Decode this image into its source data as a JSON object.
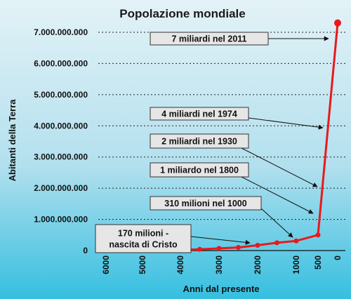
{
  "chart_data": {
    "type": "line",
    "title": "Popolazione mondiale",
    "xlabel": "Anni dal presente",
    "ylabel": "Abitanti della Terra",
    "xlim": [
      6000,
      0
    ],
    "ylim": [
      0,
      7000000000
    ],
    "x_ticks": [
      "6000",
      "5000",
      "4000",
      "3000",
      "2000",
      "1000",
      "500",
      "0"
    ],
    "y_ticks": [
      "0",
      "1.000.000.000",
      "2.000.000.000",
      "3.000.000.000",
      "4.000.000.000",
      "5.000.000.000",
      "6.000.000.000",
      "7.000.000.000"
    ],
    "grid": "horizontal dotted",
    "line_color": "#e8191c",
    "x": [
      6000,
      5500,
      5000,
      4500,
      4000,
      3500,
      3000,
      2500,
      2000,
      1500,
      1000,
      500,
      0
    ],
    "values": [
      5000000,
      7000000,
      10000000,
      14000000,
      20000000,
      40000000,
      70000000,
      100000000,
      170000000,
      250000000,
      310000000,
      500000000,
      7300000000
    ],
    "annotations": [
      {
        "text_lines": [
          "7 miliardi nel 2011"
        ],
        "target_x": 0,
        "target_y": 7000000000
      },
      {
        "text_lines": [
          "4 miliardi nel 1974"
        ],
        "target_x": 40,
        "target_y": 4000000000
      },
      {
        "text_lines": [
          "2 miliardi nel 1930"
        ],
        "target_x": 80,
        "target_y": 2000000000
      },
      {
        "text_lines": [
          "1 miliardo nel 1800"
        ],
        "target_x": 210,
        "target_y": 1000000000
      },
      {
        "text_lines": [
          "310 milioni nel 1000"
        ],
        "target_x": 1000,
        "target_y": 310000000
      },
      {
        "text_lines": [
          "170 milioni -",
          "nascita di Cristo"
        ],
        "target_x": 2000,
        "target_y": 170000000
      }
    ]
  }
}
